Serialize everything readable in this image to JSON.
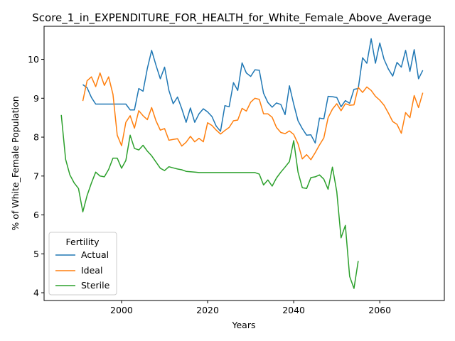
{
  "chart_data": {
    "type": "line",
    "title": "Score_1_in_EXPENDITURE_FOR_HEALTH_for_White_Female_Above_Average",
    "xlabel": "Years",
    "ylabel": "% of White_Female Population",
    "xlim": [
      1982,
      2075
    ],
    "ylim": [
      3.8,
      10.85
    ],
    "x_ticks": [
      2000,
      2020,
      2040,
      2060
    ],
    "y_ticks": [
      4,
      5,
      6,
      7,
      8,
      9,
      10
    ],
    "legend": {
      "title": "Fertility",
      "placement": "lower-left"
    },
    "series": [
      {
        "name": "Actual",
        "color": "#1f77b4",
        "x": [
          1991,
          1992,
          1993,
          1994,
          1995,
          1996,
          1997,
          1998,
          1999,
          2000,
          2001,
          2002,
          2003,
          2004,
          2005,
          2006,
          2007,
          2008,
          2009,
          2010,
          2011,
          2012,
          2013,
          2014,
          2015,
          2016,
          2017,
          2018,
          2019,
          2020,
          2021,
          2022,
          2023,
          2024,
          2025,
          2026,
          2027,
          2028,
          2029,
          2030,
          2031,
          2032,
          2033,
          2034,
          2035,
          2036,
          2037,
          2038,
          2039,
          2040,
          2041,
          2042,
          2043,
          2044,
          2045,
          2046,
          2047,
          2048,
          2049,
          2050,
          2051,
          2052,
          2053,
          2054,
          2055,
          2056,
          2057,
          2058,
          2059,
          2060,
          2061,
          2062,
          2063,
          2064,
          2065,
          2066,
          2067,
          2068,
          2069,
          2070
        ],
        "y": [
          9.35,
          9.27,
          9.02,
          8.85,
          8.85,
          8.85,
          8.85,
          8.85,
          8.85,
          8.85,
          8.85,
          8.7,
          8.7,
          9.25,
          9.18,
          9.77,
          10.23,
          9.85,
          9.5,
          9.8,
          9.2,
          8.86,
          9.03,
          8.73,
          8.38,
          8.75,
          8.38,
          8.6,
          8.73,
          8.65,
          8.53,
          8.28,
          8.15,
          8.81,
          8.78,
          9.4,
          9.2,
          9.91,
          9.65,
          9.56,
          9.73,
          9.72,
          9.13,
          8.89,
          8.77,
          8.88,
          8.84,
          8.58,
          9.32,
          8.85,
          8.42,
          8.22,
          8.05,
          8.06,
          7.85,
          8.49,
          8.47,
          9.05,
          9.04,
          9.02,
          8.78,
          8.94,
          8.87,
          9.23,
          9.25,
          10.04,
          9.9,
          10.53,
          9.9,
          10.42,
          10.0,
          9.75,
          9.57,
          9.92,
          9.8,
          10.23,
          9.69,
          10.25,
          9.5,
          9.72
        ]
      },
      {
        "name": "Ideal",
        "color": "#ff7f0e",
        "x": [
          1991,
          1992,
          1993,
          1994,
          1995,
          1996,
          1997,
          1998,
          1999,
          2000,
          2001,
          2002,
          2003,
          2004,
          2005,
          2006,
          2007,
          2008,
          2009,
          2010,
          2011,
          2012,
          2013,
          2014,
          2015,
          2016,
          2017,
          2018,
          2019,
          2020,
          2021,
          2022,
          2023,
          2024,
          2025,
          2026,
          2027,
          2028,
          2029,
          2030,
          2031,
          2032,
          2033,
          2034,
          2035,
          2036,
          2037,
          2038,
          2039,
          2040,
          2041,
          2042,
          2043,
          2044,
          2045,
          2046,
          2047,
          2048,
          2049,
          2050,
          2051,
          2052,
          2053,
          2054,
          2055,
          2056,
          2057,
          2058,
          2059,
          2060,
          2061,
          2062,
          2063,
          2064,
          2065,
          2066,
          2067,
          2068,
          2069,
          2070
        ],
        "y": [
          8.93,
          9.45,
          9.55,
          9.3,
          9.65,
          9.33,
          9.55,
          9.1,
          8.05,
          7.78,
          8.38,
          8.55,
          8.23,
          8.68,
          8.55,
          8.45,
          8.76,
          8.42,
          8.18,
          8.22,
          7.92,
          7.94,
          7.96,
          7.77,
          7.87,
          8.02,
          7.88,
          7.97,
          7.88,
          8.37,
          8.3,
          8.18,
          8.08,
          8.17,
          8.25,
          8.42,
          8.44,
          8.74,
          8.67,
          8.9,
          9.0,
          8.97,
          8.6,
          8.6,
          8.51,
          8.25,
          8.12,
          8.09,
          8.16,
          8.07,
          7.83,
          7.44,
          7.55,
          7.42,
          7.6,
          7.8,
          7.98,
          8.5,
          8.72,
          8.86,
          8.68,
          8.86,
          8.82,
          8.83,
          9.28,
          9.15,
          9.29,
          9.2,
          9.05,
          8.95,
          8.82,
          8.62,
          8.4,
          8.33,
          8.1,
          8.63,
          8.5,
          9.07,
          8.76,
          9.14
        ]
      },
      {
        "name": "Sterile",
        "color": "#2ca02c",
        "x": [
          1986,
          1987,
          1988,
          1989,
          1990,
          1991,
          1992,
          1993,
          1994,
          1995,
          1996,
          1997,
          1998,
          1999,
          2000,
          2001,
          2002,
          2003,
          2004,
          2005,
          2006,
          2007,
          2008,
          2009,
          2010,
          2011,
          2012,
          2013,
          2014,
          2015,
          2016,
          2017,
          2018,
          2019,
          2020,
          2021,
          2022,
          2023,
          2024,
          2025,
          2026,
          2027,
          2028,
          2029,
          2030,
          2031,
          2032,
          2033,
          2034,
          2035,
          2036,
          2037,
          2038,
          2039,
          2040,
          2041,
          2042,
          2043,
          2044,
          2045,
          2046,
          2047,
          2048,
          2049,
          2050,
          2051,
          2052,
          2053,
          2054,
          2055
        ],
        "y": [
          8.57,
          7.43,
          7.03,
          6.82,
          6.68,
          6.08,
          6.5,
          6.82,
          7.1,
          7.0,
          6.98,
          7.17,
          7.46,
          7.46,
          7.2,
          7.4,
          8.05,
          7.71,
          7.67,
          7.79,
          7.64,
          7.52,
          7.36,
          7.2,
          7.14,
          7.24,
          7.21,
          7.18,
          7.16,
          7.12,
          7.11,
          7.1,
          7.09,
          7.09,
          7.09,
          7.09,
          7.09,
          7.09,
          7.09,
          7.09,
          7.09,
          7.09,
          7.09,
          7.09,
          7.09,
          7.09,
          7.05,
          6.77,
          6.9,
          6.74,
          6.95,
          7.1,
          7.23,
          7.37,
          7.91,
          7.1,
          6.7,
          6.68,
          6.96,
          6.98,
          7.03,
          6.92,
          6.66,
          7.23,
          6.6,
          5.41,
          5.73,
          4.42,
          4.11,
          4.82
        ]
      }
    ]
  }
}
